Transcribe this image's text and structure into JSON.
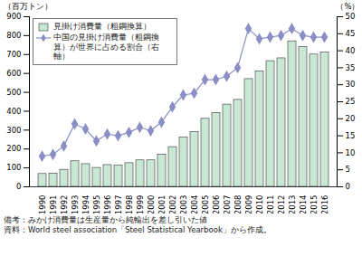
{
  "chart_data": {
    "type": "bar",
    "categories": [
      "1990",
      "1991",
      "1992",
      "1993",
      "1994",
      "1995",
      "1996",
      "1997",
      "1998",
      "1999",
      "2000",
      "2001",
      "2002",
      "2003",
      "2004",
      "2005",
      "2006",
      "2007",
      "2008",
      "2009",
      "2010",
      "2011",
      "2012",
      "2013",
      "2014",
      "2015",
      "2016"
    ],
    "series": [
      {
        "name": "見掛け消費量（粗鋼換算）",
        "type": "bar",
        "color": "#c9e8d4",
        "values": [
          68,
          70,
          90,
          135,
          120,
          100,
          115,
          112,
          125,
          140,
          140,
          170,
          210,
          260,
          290,
          360,
          390,
          435,
          460,
          570,
          610,
          665,
          680,
          770,
          740,
          700,
          710
        ]
      },
      {
        "name": "中国の見掛け消費量（粗鋼換算）が世界に占める割合（右軸）",
        "type": "line",
        "color": "#8a8ec4",
        "marker": "diamond",
        "axis": "y2",
        "values": [
          9,
          9.5,
          12,
          18.5,
          17,
          13.5,
          15.5,
          15,
          16,
          17.5,
          16.5,
          19,
          23.5,
          27,
          27.5,
          31.5,
          31.5,
          32.5,
          35,
          46.5,
          43.5,
          44,
          44.5,
          46.5,
          44.5,
          44,
          44
        ]
      }
    ],
    "ylabel": "（百万トン）",
    "y2label": "（%）",
    "ylim": [
      0,
      900
    ],
    "yticks": [
      0,
      100,
      200,
      300,
      400,
      500,
      600,
      700,
      800,
      900
    ],
    "y2lim": [
      0,
      50
    ],
    "y2ticks": [
      0,
      5,
      10,
      15,
      20,
      25,
      30,
      35,
      40,
      45,
      50
    ],
    "legend": "top-left",
    "grid": false,
    "annotations": [
      "備考：みかけ消費量は生産量から純輸出を差し引いた値",
      "資料：World steel association「Steel Statistical Yearbook」から作成。"
    ]
  }
}
